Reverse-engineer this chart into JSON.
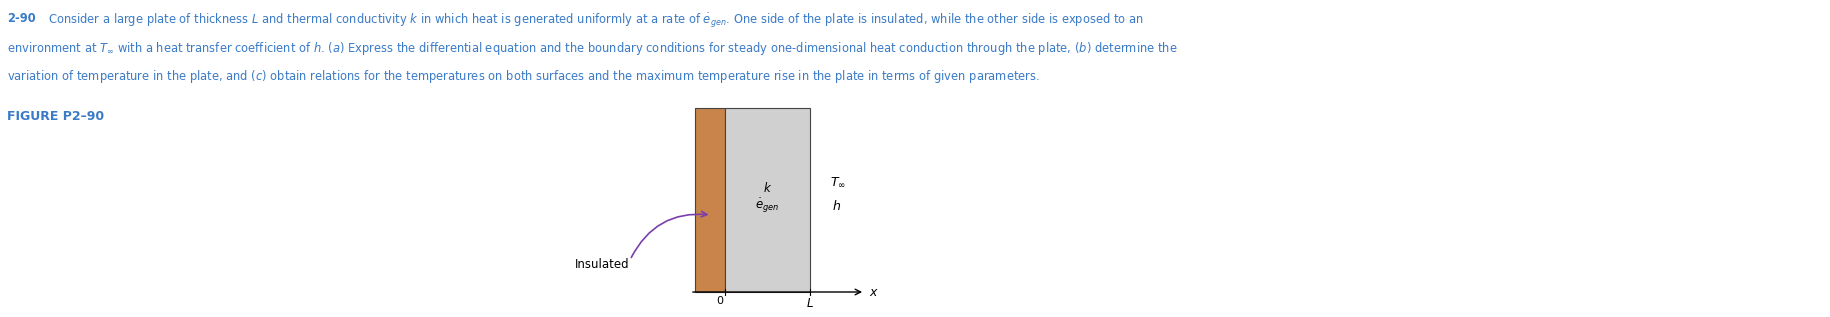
{
  "background_color": "#ffffff",
  "text_color": "#3a7bc8",
  "figure_label_color": "#3a7bc8",
  "plate_gray": "#d0d0d0",
  "plate_brown": "#c8844a",
  "plate_border": "#444444",
  "arrow_color": "#7a3faa",
  "text_line1": "Consider a large plate of thickness $L$ and thermal conductivity $k$ in which heat is generated uniformly at a rate of $\\dot{e}_{gen}$. One side of the plate is insulated, while the other side is exposed to an",
  "text_line2": "environment at $T_\\infty$ with a heat transfer coefficient of $h$. ($a$) Express the differential equation and the boundary conditions for steady one-dimensional heat conduction through the plate, ($b$) determine the",
  "text_line3": "variation of temperature in the plate, and ($c$) obtain relations for the temperatures on both surfaces and the maximum temperature rise in the plate in terms of given parameters.",
  "fig_label": "FIGURE P2–90",
  "number_label": "2-90",
  "text_fontsize": 8.3,
  "label_fontsize": 9.0
}
